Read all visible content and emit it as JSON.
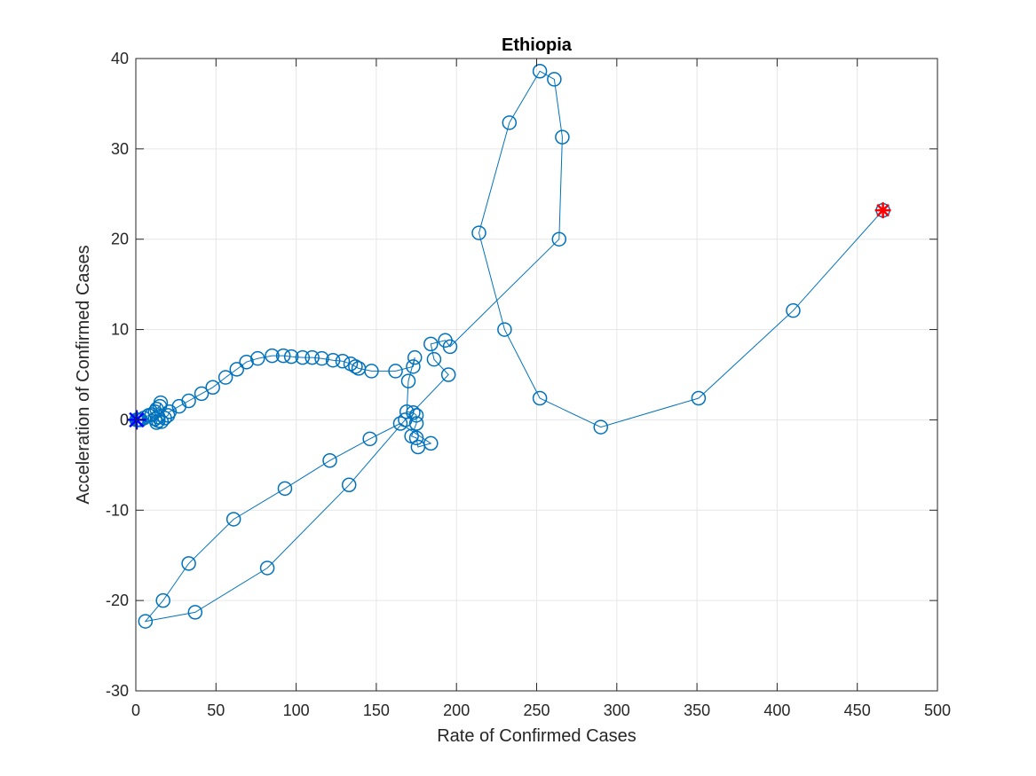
{
  "chart_data": {
    "type": "scatter",
    "title": "Ethiopia",
    "xlabel": "Rate of Confirmed Cases",
    "ylabel": "Acceleration of Confirmed Cases",
    "xlim": [
      0,
      500
    ],
    "ylim": [
      -30,
      40
    ],
    "xticks": [
      0,
      50,
      100,
      150,
      200,
      250,
      300,
      350,
      400,
      450,
      500
    ],
    "yticks": [
      -30,
      -20,
      -10,
      0,
      10,
      20,
      30,
      40
    ],
    "grid": true,
    "colors": {
      "line": "#0072BD",
      "start_marker": "#0000FF",
      "end_marker": "#FF0000",
      "grid": "#E6E6E6",
      "axis": "#262626"
    },
    "series": [
      {
        "marker": "circle",
        "x": [
          0.5,
          1,
          1.5,
          2,
          3,
          5,
          8,
          10,
          12,
          13,
          15,
          15.5,
          14,
          13,
          12,
          14,
          16,
          18,
          20,
          21,
          27,
          33,
          41,
          48,
          56,
          63,
          69,
          76,
          85,
          92,
          97,
          104,
          110,
          116,
          123,
          129,
          134,
          137,
          139,
          147,
          162,
          173,
          174,
          170,
          169,
          173,
          175,
          175,
          172,
          175,
          176,
          184,
          165,
          146,
          121,
          93,
          61,
          33,
          17,
          6,
          37,
          82,
          133,
          168,
          195,
          186,
          184,
          193,
          196,
          264,
          266,
          261,
          252,
          233,
          214,
          230,
          252,
          290,
          351,
          410,
          466
        ],
        "y": [
          0,
          0,
          0,
          0,
          0,
          0.2,
          0.5,
          0.6,
          0.9,
          1.2,
          1.5,
          1.9,
          0.3,
          -0.3,
          0.1,
          -0.1,
          -0.2,
          0.2,
          0.5,
          0.9,
          1.5,
          2.1,
          2.9,
          3.6,
          4.7,
          5.6,
          6.4,
          6.8,
          7.1,
          7.1,
          7.0,
          6.9,
          6.9,
          6.8,
          6.6,
          6.5,
          6.2,
          5.9,
          5.7,
          5.4,
          5.4,
          5.9,
          6.9,
          4.3,
          0.9,
          0.8,
          0.5,
          -0.4,
          -1.8,
          -2.0,
          -3.0,
          -2.6,
          -0.4,
          -2.1,
          -4.5,
          -7.6,
          -11.0,
          -15.9,
          -20.0,
          -22.3,
          -21.3,
          -16.4,
          -7.2,
          0.0,
          5.0,
          6.7,
          8.4,
          8.8,
          8.1,
          20.0,
          31.3,
          37.7,
          38.6,
          32.9,
          20.7,
          10.0,
          2.4,
          -0.8,
          2.4,
          12.1,
          23.2
        ]
      }
    ],
    "start_point": {
      "x": 0.5,
      "y": 0
    },
    "end_point": {
      "x": 466,
      "y": 23.2
    }
  }
}
